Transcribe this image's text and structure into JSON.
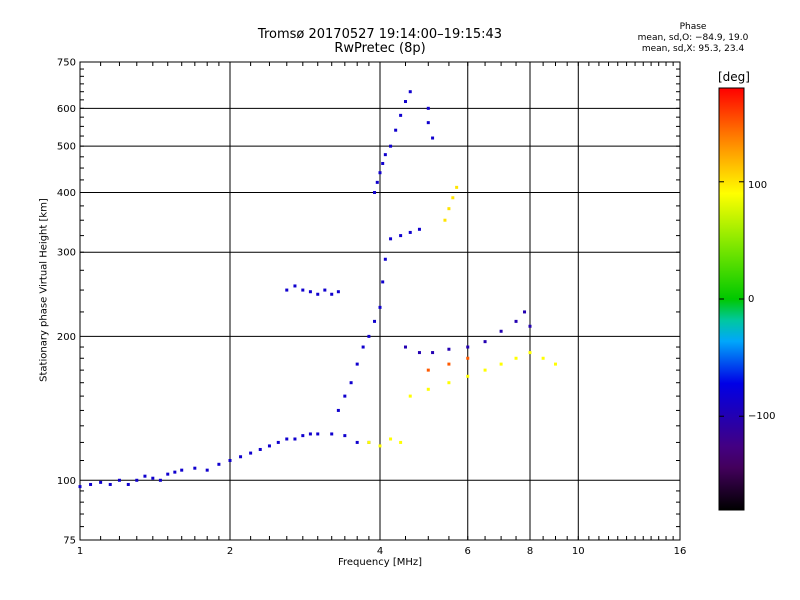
{
  "header": {
    "title_line1": "Tromsø 20170527 19:14:00–19:15:43",
    "title_line2": "RwPretec (8p)"
  },
  "phase_box": {
    "title": "Phase",
    "line_o": "mean, sd,O: −84.9, 19.0",
    "line_x": "mean, sd,X:  95.3, 23.4"
  },
  "colorbar": {
    "unit": "[deg]",
    "ticks": [
      {
        "value": 100,
        "label": "100"
      },
      {
        "value": 0,
        "label": "0"
      },
      {
        "value": -100,
        "label": "−100"
      }
    ],
    "range": [
      -180,
      180
    ]
  },
  "chart_data": {
    "type": "scatter",
    "title": "Tromsø 20170527 19:14:00–19:15:43",
    "subtitle": "RwPretec (8p)",
    "xlabel": "Frequency [MHz]",
    "ylabel": "Stationary phase Virtual Height [km]",
    "x_scale": "log",
    "y_scale": "log",
    "xlim": [
      1,
      16
    ],
    "ylim": [
      75,
      750
    ],
    "x_ticks": [
      1,
      2,
      4,
      6,
      8,
      10,
      16
    ],
    "x_tick_labels": [
      "1",
      "2",
      "4",
      "6",
      "8",
      "10",
      "16"
    ],
    "y_ticks": [
      75,
      100,
      200,
      300,
      400,
      500,
      600,
      750
    ],
    "y_tick_labels": [
      "75",
      "100",
      "200",
      "300",
      "400",
      "500",
      "600",
      "750"
    ],
    "grid": true,
    "color_variable": "phase [deg]",
    "series": [
      {
        "color_phase": -85,
        "points": [
          [
            1.0,
            97
          ],
          [
            1.05,
            98
          ],
          [
            1.1,
            99
          ],
          [
            1.15,
            98
          ],
          [
            1.2,
            100
          ],
          [
            1.25,
            98
          ],
          [
            1.3,
            100
          ],
          [
            1.35,
            102
          ],
          [
            1.4,
            101
          ],
          [
            1.45,
            100
          ],
          [
            1.5,
            103
          ],
          [
            1.55,
            104
          ],
          [
            1.6,
            105
          ],
          [
            1.7,
            106
          ],
          [
            1.8,
            105
          ],
          [
            1.9,
            108
          ],
          [
            2.0,
            110
          ],
          [
            2.1,
            112
          ],
          [
            2.2,
            114
          ],
          [
            2.3,
            116
          ],
          [
            2.4,
            118
          ],
          [
            2.5,
            120
          ],
          [
            2.6,
            122
          ],
          [
            2.7,
            122
          ],
          [
            2.8,
            124
          ],
          [
            2.9,
            125
          ],
          [
            3.0,
            125
          ],
          [
            3.2,
            125
          ],
          [
            3.4,
            124
          ],
          [
            3.6,
            120
          ],
          [
            3.8,
            120
          ]
        ]
      },
      {
        "color_phase": -85,
        "points": [
          [
            2.6,
            250
          ],
          [
            2.7,
            255
          ],
          [
            2.8,
            250
          ],
          [
            2.9,
            248
          ],
          [
            3.0,
            245
          ],
          [
            3.1,
            250
          ],
          [
            3.2,
            245
          ],
          [
            3.3,
            248
          ]
        ]
      },
      {
        "color_phase": -85,
        "points": [
          [
            3.3,
            140
          ],
          [
            3.4,
            150
          ],
          [
            3.5,
            160
          ],
          [
            3.6,
            175
          ],
          [
            3.7,
            190
          ],
          [
            3.8,
            200
          ],
          [
            3.9,
            215
          ],
          [
            4.0,
            230
          ],
          [
            4.05,
            260
          ],
          [
            4.1,
            290
          ],
          [
            4.2,
            320
          ],
          [
            4.4,
            325
          ],
          [
            4.6,
            330
          ],
          [
            4.8,
            335
          ]
        ]
      },
      {
        "color_phase": -85,
        "points": [
          [
            3.9,
            400
          ],
          [
            3.95,
            420
          ],
          [
            4.0,
            440
          ],
          [
            4.05,
            460
          ],
          [
            4.1,
            480
          ],
          [
            4.2,
            500
          ],
          [
            4.3,
            540
          ],
          [
            4.4,
            580
          ],
          [
            4.5,
            620
          ],
          [
            4.6,
            650
          ],
          [
            5.0,
            600
          ],
          [
            5.0,
            560
          ],
          [
            5.1,
            520
          ]
        ]
      },
      {
        "color_phase": -100,
        "points": [
          [
            4.5,
            190
          ],
          [
            4.8,
            185
          ],
          [
            5.1,
            185
          ],
          [
            5.5,
            188
          ],
          [
            6.0,
            190
          ],
          [
            6.5,
            195
          ],
          [
            7.0,
            205
          ],
          [
            7.5,
            215
          ],
          [
            7.8,
            225
          ],
          [
            8.0,
            210
          ]
        ]
      },
      {
        "color_phase": 90,
        "points": [
          [
            3.8,
            120
          ],
          [
            4.0,
            118
          ],
          [
            4.2,
            122
          ],
          [
            4.4,
            120
          ],
          [
            4.6,
            150
          ],
          [
            5.0,
            155
          ],
          [
            5.5,
            160
          ],
          [
            6.0,
            165
          ],
          [
            6.5,
            170
          ],
          [
            7.0,
            175
          ],
          [
            7.5,
            180
          ],
          [
            8.0,
            185
          ],
          [
            8.5,
            180
          ],
          [
            9.0,
            175
          ]
        ]
      },
      {
        "color_phase": 100,
        "points": [
          [
            5.4,
            350
          ],
          [
            5.5,
            370
          ],
          [
            5.6,
            390
          ],
          [
            5.7,
            410
          ]
        ]
      },
      {
        "color_phase": 150,
        "points": [
          [
            5.0,
            170
          ],
          [
            5.5,
            175
          ],
          [
            6.0,
            180
          ]
        ]
      }
    ]
  }
}
